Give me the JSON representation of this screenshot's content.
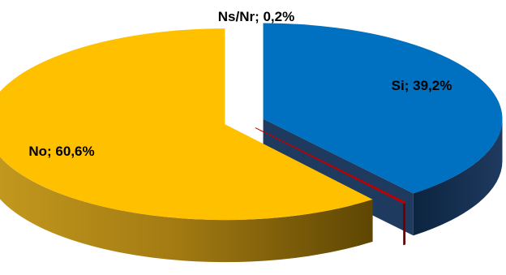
{
  "chart_data": {
    "type": "pie",
    "style": "3d-exploded",
    "title": "",
    "legend": "none",
    "categories": [
      "Si",
      "Ns/Nr",
      "No"
    ],
    "values": [
      39.2,
      0.2,
      60.6
    ],
    "labels": [
      "Si; 39,2%",
      "Ns/Nr; 0,2%",
      "No; 60,6%"
    ],
    "colors": [
      "#0070C0",
      "#C00000",
      "#FFC000"
    ],
    "side_colors": [
      "#1F3A5F",
      "#7A0000",
      "#8A6A00"
    ]
  }
}
